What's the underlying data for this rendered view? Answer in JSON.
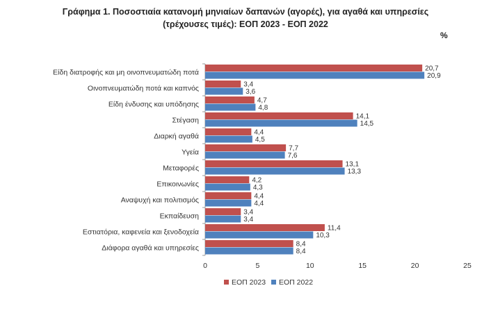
{
  "title_line1": "Γράφημα 1. Ποσοστιαία κατανομή μηνιαίων δαπανών (αγορές), για αγαθά και υπηρεσίες",
  "title_line2": "(τρέχουσες τιμές): ΕΟΠ 2023 - ΕΟΠ 2022",
  "unit_label": "%",
  "chart_data": {
    "type": "bar",
    "orientation": "horizontal",
    "categories": [
      "Είδη διατροφής και μη οινοπνευματώδη ποτά",
      "Οινοπνευματώδη ποτά και καπνός",
      "Είδη ένδυσης και υπόδησης",
      "Στέγαση",
      "Διαρκή αγαθά",
      "Υγεία",
      "Μεταφορές",
      "Επικοινωνίες",
      "Αναψυχή και πολιτισμός",
      "Εκπαίδευση",
      "Εστιατόρια, καφενεία  και ξενοδοχεία",
      "Διάφορα αγαθά και υπηρεσίες"
    ],
    "series": [
      {
        "name": "ΕΟΠ 2023",
        "color": "#c0504d",
        "values": [
          20.7,
          3.4,
          4.7,
          14.1,
          4.4,
          7.7,
          13.1,
          4.2,
          4.4,
          3.4,
          11.4,
          8.4
        ]
      },
      {
        "name": "ΕΟΠ 2022",
        "color": "#4f81bd",
        "values": [
          20.9,
          3.6,
          4.8,
          14.5,
          4.5,
          7.6,
          13.3,
          4.3,
          4.4,
          3.4,
          10.3,
          8.4
        ]
      }
    ],
    "xlim": [
      0,
      25
    ],
    "xticks": [
      0,
      5,
      10,
      15,
      20,
      25
    ],
    "decimal_separator": ",",
    "data_labels": true,
    "legend_position": "bottom",
    "grid": false
  }
}
